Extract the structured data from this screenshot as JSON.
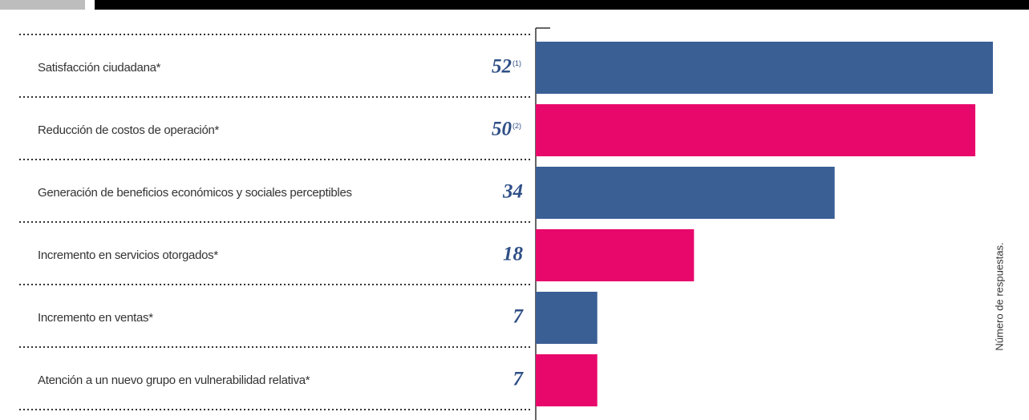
{
  "chart_data": {
    "type": "bar",
    "orientation": "horizontal",
    "categories": [
      "Satisfacción ciudadana*",
      "Reducción de costos de operación*",
      "Generación de beneficios económicos y sociales perceptibles",
      "Incremento en servicios otorgados*",
      "Incremento en ventas*",
      "Atención a un nuevo grupo en vulnerabilidad relativa*"
    ],
    "values": [
      52,
      50,
      34,
      18,
      7,
      7
    ],
    "notes": [
      "(1)",
      "(2)",
      null,
      null,
      null,
      null
    ],
    "colors": [
      "#3a5f95",
      "#e8086b",
      "#3a5f95",
      "#e8086b",
      "#3a5f95",
      "#e8086b"
    ],
    "xlim": [
      0,
      52
    ],
    "axis_label": "Número de respuestas."
  }
}
